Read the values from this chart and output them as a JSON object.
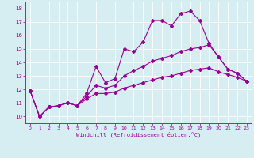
{
  "xlabel": "Windchill (Refroidissement éolien,°C)",
  "background_color": "#d6eef2",
  "line_color": "#990099",
  "xlim": [
    -0.5,
    23.5
  ],
  "ylim": [
    9.5,
    18.5
  ],
  "yticks": [
    10,
    11,
    12,
    13,
    14,
    15,
    16,
    17,
    18
  ],
  "xticks": [
    0,
    1,
    2,
    3,
    4,
    5,
    6,
    7,
    8,
    9,
    10,
    11,
    12,
    13,
    14,
    15,
    16,
    17,
    18,
    19,
    20,
    21,
    22,
    23
  ],
  "series": [
    [
      11.9,
      10.0,
      10.7,
      10.8,
      11.0,
      10.8,
      11.7,
      13.7,
      12.5,
      12.8,
      15.0,
      14.8,
      15.5,
      17.1,
      17.1,
      16.7,
      17.6,
      17.8,
      17.1,
      15.4,
      14.4,
      13.5,
      13.2,
      12.6
    ],
    [
      11.9,
      10.0,
      10.7,
      10.8,
      11.0,
      10.8,
      11.5,
      12.3,
      12.1,
      12.3,
      13.0,
      13.4,
      13.7,
      14.1,
      14.3,
      14.5,
      14.8,
      15.0,
      15.1,
      15.3,
      14.4,
      13.5,
      13.2,
      12.6
    ],
    [
      11.9,
      10.0,
      10.7,
      10.8,
      11.0,
      10.8,
      11.3,
      11.7,
      11.7,
      11.8,
      12.1,
      12.3,
      12.5,
      12.7,
      12.9,
      13.0,
      13.2,
      13.4,
      13.5,
      13.6,
      13.3,
      13.1,
      12.9,
      12.6
    ]
  ]
}
